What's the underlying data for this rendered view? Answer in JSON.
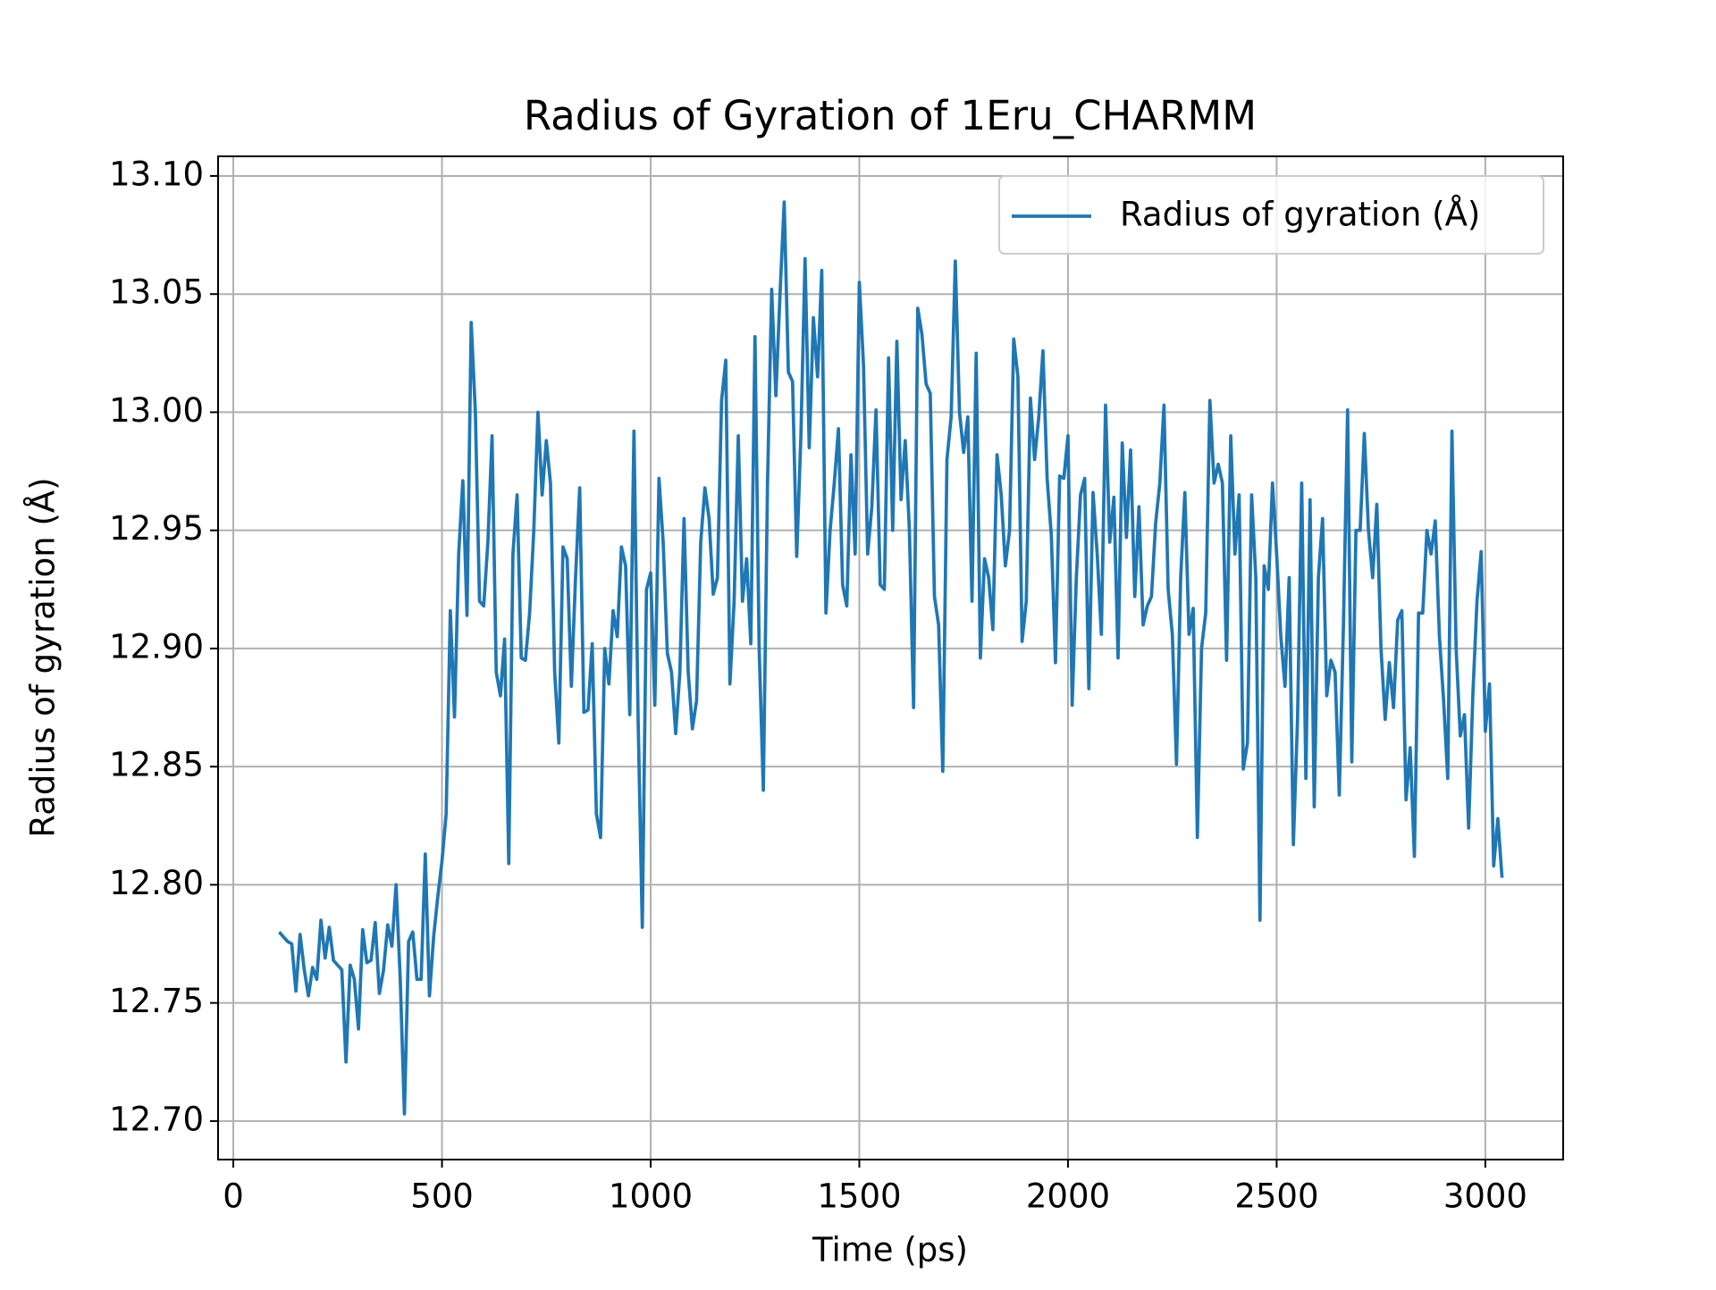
{
  "chart_data": {
    "type": "line",
    "title": "Radius of Gyration of 1Eru_CHARMM",
    "xlabel": "Time (ps)",
    "ylabel": "Radius of gyration (Å)",
    "grid": true,
    "legend": "upper right",
    "xlim": [
      -36.5,
      3186.5
    ],
    "ylim": [
      12.6837,
      13.1083
    ],
    "xticks": [
      0,
      500,
      1000,
      1500,
      2000,
      2500,
      3000
    ],
    "yticks": [
      {
        "value": 12.7,
        "label": "12.70"
      },
      12.75,
      {
        "value": 12.8,
        "label": "12.80"
      },
      12.85,
      {
        "value": 12.9,
        "label": "12.90"
      },
      12.95,
      {
        "value": 13.0,
        "label": "13.00"
      },
      13.05,
      {
        "value": 13.1,
        "label": "13.10"
      }
    ],
    "x": [
      110,
      120,
      130,
      140,
      150,
      160,
      170,
      180,
      190,
      200,
      210,
      220,
      230,
      240,
      250,
      260,
      270,
      280,
      290,
      300,
      310,
      320,
      330,
      340,
      350,
      360,
      370,
      380,
      390,
      400,
      410,
      420,
      430,
      440,
      450,
      460,
      470,
      480,
      490,
      500,
      510,
      520,
      530,
      540,
      550,
      560,
      570,
      580,
      590,
      600,
      610,
      620,
      630,
      640,
      650,
      660,
      670,
      680,
      690,
      700,
      710,
      720,
      730,
      740,
      750,
      760,
      770,
      780,
      790,
      800,
      810,
      820,
      830,
      840,
      850,
      860,
      870,
      880,
      890,
      900,
      910,
      920,
      930,
      940,
      950,
      960,
      970,
      980,
      990,
      1000,
      1010,
      1020,
      1030,
      1040,
      1050,
      1060,
      1070,
      1080,
      1090,
      1100,
      1110,
      1120,
      1130,
      1140,
      1150,
      1160,
      1170,
      1180,
      1190,
      1200,
      1210,
      1220,
      1230,
      1240,
      1250,
      1260,
      1270,
      1280,
      1290,
      1300,
      1310,
      1320,
      1330,
      1340,
      1350,
      1360,
      1370,
      1380,
      1390,
      1400,
      1410,
      1420,
      1430,
      1440,
      1450,
      1460,
      1470,
      1480,
      1490,
      1500,
      1510,
      1520,
      1530,
      1540,
      1550,
      1560,
      1570,
      1580,
      1590,
      1600,
      1610,
      1620,
      1630,
      1640,
      1650,
      1660,
      1670,
      1680,
      1690,
      1700,
      1710,
      1720,
      1730,
      1740,
      1750,
      1760,
      1770,
      1780,
      1790,
      1800,
      1810,
      1820,
      1830,
      1840,
      1850,
      1860,
      1870,
      1880,
      1890,
      1900,
      1910,
      1920,
      1930,
      1940,
      1950,
      1960,
      1970,
      1980,
      1990,
      2000,
      2010,
      2020,
      2030,
      2040,
      2050,
      2060,
      2070,
      2080,
      2090,
      2100,
      2110,
      2120,
      2130,
      2140,
      2150,
      2160,
      2170,
      2180,
      2190,
      2200,
      2210,
      2220,
      2230,
      2240,
      2250,
      2260,
      2270,
      2280,
      2290,
      2300,
      2310,
      2320,
      2330,
      2340,
      2350,
      2360,
      2370,
      2380,
      2390,
      2400,
      2410,
      2420,
      2430,
      2440,
      2450,
      2460,
      2470,
      2480,
      2490,
      2500,
      2510,
      2520,
      2530,
      2540,
      2550,
      2560,
      2570,
      2580,
      2590,
      2600,
      2610,
      2620,
      2630,
      2640,
      2650,
      2660,
      2670,
      2680,
      2690,
      2700,
      2710,
      2720,
      2730,
      2740,
      2750,
      2760,
      2770,
      2780,
      2790,
      2800,
      2810,
      2820,
      2830,
      2840,
      2850,
      2860,
      2870,
      2880,
      2890,
      2900,
      2910,
      2920,
      2930,
      2940,
      2950,
      2960,
      2970,
      2980,
      2990,
      3000,
      3010,
      3020,
      3030,
      3040
    ],
    "series": [
      {
        "name": "Radius of gyration (Å)",
        "color": "#1f77b4",
        "values": [
          12.78,
          12.778,
          12.776,
          12.775,
          12.755,
          12.779,
          12.764,
          12.753,
          12.765,
          12.76,
          12.785,
          12.769,
          12.782,
          12.768,
          12.766,
          12.764,
          12.725,
          12.766,
          12.76,
          12.739,
          12.781,
          12.767,
          12.768,
          12.784,
          12.754,
          12.764,
          12.783,
          12.774,
          12.8,
          12.76,
          12.703,
          12.776,
          12.78,
          12.76,
          12.76,
          12.813,
          12.753,
          12.778,
          12.795,
          12.81,
          12.83,
          12.916,
          12.871,
          12.94,
          12.971,
          12.914,
          13.038,
          13.0,
          12.92,
          12.918,
          12.945,
          12.99,
          12.89,
          12.88,
          12.904,
          12.809,
          12.94,
          12.965,
          12.896,
          12.895,
          12.915,
          12.95,
          13.0,
          12.965,
          12.988,
          12.97,
          12.89,
          12.86,
          12.943,
          12.938,
          12.884,
          12.93,
          12.968,
          12.873,
          12.874,
          12.902,
          12.83,
          12.82,
          12.9,
          12.885,
          12.916,
          12.905,
          12.943,
          12.935,
          12.872,
          12.992,
          12.87,
          12.782,
          12.925,
          12.932,
          12.876,
          12.972,
          12.945,
          12.898,
          12.89,
          12.864,
          12.89,
          12.955,
          12.89,
          12.866,
          12.878,
          12.945,
          12.968,
          12.955,
          12.923,
          12.93,
          13.005,
          13.022,
          12.885,
          12.92,
          12.99,
          12.92,
          12.938,
          12.902,
          13.032,
          12.9,
          12.84,
          12.97,
          13.052,
          13.007,
          13.05,
          13.089,
          13.017,
          13.013,
          12.939,
          12.99,
          13.065,
          12.985,
          13.04,
          13.015,
          13.06,
          12.915,
          12.95,
          12.97,
          12.993,
          12.927,
          12.918,
          12.982,
          12.94,
          13.055,
          13.02,
          12.94,
          12.96,
          13.001,
          12.927,
          12.925,
          13.023,
          12.95,
          13.03,
          12.963,
          12.988,
          12.95,
          12.875,
          13.044,
          13.033,
          13.012,
          13.008,
          12.922,
          12.91,
          12.848,
          12.98,
          12.998,
          13.064,
          13.0,
          12.983,
          12.998,
          12.92,
          13.025,
          12.896,
          12.938,
          12.93,
          12.908,
          12.982,
          12.965,
          12.935,
          12.95,
          13.031,
          13.015,
          12.903,
          12.92,
          13.006,
          12.98,
          12.998,
          13.026,
          12.972,
          12.948,
          12.894,
          12.973,
          12.972,
          12.99,
          12.876,
          12.93,
          12.965,
          12.972,
          12.883,
          12.966,
          12.94,
          12.906,
          13.003,
          12.945,
          12.964,
          12.896,
          12.987,
          12.947,
          12.984,
          12.922,
          12.96,
          12.91,
          12.918,
          12.922,
          12.953,
          12.97,
          13.003,
          12.925,
          12.906,
          12.851,
          12.93,
          12.966,
          12.906,
          12.917,
          12.82,
          12.9,
          12.915,
          13.005,
          12.97,
          12.978,
          12.97,
          12.895,
          12.99,
          12.94,
          12.965,
          12.849,
          12.86,
          12.965,
          12.93,
          12.785,
          12.935,
          12.925,
          12.97,
          12.94,
          12.905,
          12.884,
          12.93,
          12.817,
          12.87,
          12.97,
          12.845,
          12.963,
          12.833,
          12.93,
          12.955,
          12.88,
          12.895,
          12.89,
          12.838,
          12.91,
          13.001,
          12.852,
          12.95,
          12.95,
          12.991,
          12.95,
          12.93,
          12.961,
          12.9,
          12.87,
          12.894,
          12.875,
          12.912,
          12.916,
          12.836,
          12.858,
          12.812,
          12.915,
          12.915,
          12.95,
          12.94,
          12.954,
          12.905,
          12.878,
          12.845,
          12.992,
          12.9,
          12.863,
          12.872,
          12.824,
          12.88,
          12.92,
          12.941,
          12.865,
          12.885,
          12.808,
          12.828,
          12.803
        ]
      }
    ]
  }
}
